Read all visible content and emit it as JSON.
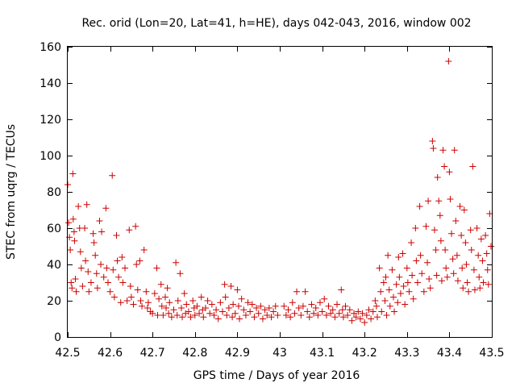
{
  "chart_data": {
    "type": "scatter",
    "title": "Rec. orid (Lon=20, Lat=41, h=HE), days 042-043, 2016, window 002",
    "xlabel": "GPS time / Days of year 2016",
    "ylabel": "STEC from uqrg / TECUs",
    "xlim": [
      42.5,
      43.5
    ],
    "ylim": [
      0,
      160
    ],
    "xticks": [
      "42.5",
      "42.6",
      "42.7",
      "42.8",
      "42.9",
      "43",
      "43.1",
      "43.2",
      "43.3",
      "43.4",
      "43.5"
    ],
    "yticks": [
      "0",
      "20",
      "40",
      "60",
      "80",
      "100",
      "120",
      "140",
      "160"
    ],
    "marker": "+",
    "series_color": "#cc0000",
    "series": [
      {
        "name": "STEC",
        "points": [
          [
            42.5,
            84
          ],
          [
            42.502,
            63
          ],
          [
            42.504,
            55
          ],
          [
            42.506,
            48
          ],
          [
            42.508,
            30
          ],
          [
            42.51,
            27
          ],
          [
            42.512,
            90
          ],
          [
            42.513,
            65
          ],
          [
            42.515,
            58
          ],
          [
            42.516,
            53
          ],
          [
            42.518,
            32
          ],
          [
            42.52,
            25
          ],
          [
            42.525,
            72
          ],
          [
            42.528,
            60
          ],
          [
            42.53,
            47
          ],
          [
            42.532,
            38
          ],
          [
            42.535,
            28
          ],
          [
            42.54,
            60
          ],
          [
            42.542,
            42
          ],
          [
            42.545,
            73
          ],
          [
            42.548,
            36
          ],
          [
            42.55,
            25
          ],
          [
            42.555,
            30
          ],
          [
            42.56,
            57
          ],
          [
            42.562,
            52
          ],
          [
            42.565,
            45
          ],
          [
            42.568,
            35
          ],
          [
            42.57,
            27
          ],
          [
            42.575,
            64
          ],
          [
            42.578,
            40
          ],
          [
            42.58,
            58
          ],
          [
            42.585,
            33
          ],
          [
            42.59,
            71
          ],
          [
            42.592,
            38
          ],
          [
            42.595,
            30
          ],
          [
            42.6,
            25
          ],
          [
            42.605,
            89
          ],
          [
            42.607,
            37
          ],
          [
            42.61,
            22
          ],
          [
            42.615,
            56
          ],
          [
            42.617,
            42
          ],
          [
            42.62,
            33
          ],
          [
            42.625,
            19
          ],
          [
            42.628,
            44
          ],
          [
            42.63,
            30
          ],
          [
            42.635,
            38
          ],
          [
            42.64,
            20
          ],
          [
            42.645,
            59
          ],
          [
            42.648,
            28
          ],
          [
            42.65,
            22
          ],
          [
            42.655,
            18
          ],
          [
            42.66,
            61
          ],
          [
            42.662,
            40
          ],
          [
            42.665,
            26
          ],
          [
            42.67,
            42
          ],
          [
            42.672,
            20
          ],
          [
            42.675,
            17
          ],
          [
            42.68,
            48
          ],
          [
            42.685,
            25
          ],
          [
            42.688,
            16
          ],
          [
            42.69,
            19
          ],
          [
            42.695,
            14
          ],
          [
            42.7,
            13
          ],
          [
            42.705,
            24
          ],
          [
            42.71,
            38
          ],
          [
            42.712,
            12
          ],
          [
            42.715,
            21
          ],
          [
            42.72,
            29
          ],
          [
            42.722,
            17
          ],
          [
            42.725,
            12
          ],
          [
            42.73,
            22
          ],
          [
            42.732,
            16
          ],
          [
            42.735,
            27
          ],
          [
            42.738,
            13
          ],
          [
            42.74,
            19
          ],
          [
            42.745,
            11
          ],
          [
            42.75,
            15
          ],
          [
            42.755,
            41
          ],
          [
            42.758,
            12
          ],
          [
            42.76,
            20
          ],
          [
            42.765,
            35
          ],
          [
            42.768,
            16
          ],
          [
            42.77,
            11
          ],
          [
            42.775,
            24
          ],
          [
            42.778,
            13
          ],
          [
            42.78,
            18
          ],
          [
            42.785,
            14
          ],
          [
            42.79,
            11
          ],
          [
            42.795,
            20
          ],
          [
            42.798,
            16
          ],
          [
            42.8,
            12
          ],
          [
            42.805,
            17
          ],
          [
            42.81,
            13
          ],
          [
            42.815,
            22
          ],
          [
            42.818,
            15
          ],
          [
            42.82,
            11
          ],
          [
            42.825,
            16
          ],
          [
            42.83,
            20
          ],
          [
            42.835,
            13
          ],
          [
            42.84,
            18
          ],
          [
            42.845,
            12
          ],
          [
            42.85,
            15
          ],
          [
            42.855,
            10
          ],
          [
            42.86,
            19
          ],
          [
            42.865,
            14
          ],
          [
            42.87,
            29
          ],
          [
            42.872,
            22
          ],
          [
            42.875,
            12
          ],
          [
            42.88,
            16
          ],
          [
            42.885,
            28
          ],
          [
            42.888,
            11
          ],
          [
            42.89,
            18
          ],
          [
            42.895,
            13
          ],
          [
            42.9,
            26
          ],
          [
            42.903,
            17
          ],
          [
            42.905,
            10
          ],
          [
            42.91,
            21
          ],
          [
            42.915,
            15
          ],
          [
            42.92,
            12
          ],
          [
            42.925,
            19
          ],
          [
            42.93,
            14
          ],
          [
            42.935,
            18
          ],
          [
            42.94,
            11
          ],
          [
            42.945,
            16
          ],
          [
            42.95,
            13
          ],
          [
            42.955,
            17
          ],
          [
            42.96,
            10
          ],
          [
            42.965,
            15
          ],
          [
            42.97,
            12
          ],
          [
            42.975,
            16
          ],
          [
            42.98,
            11
          ],
          [
            42.985,
            14
          ],
          [
            42.99,
            17
          ],
          [
            42.995,
            12
          ],
          [
            43.01,
            17
          ],
          [
            43.015,
            12
          ],
          [
            43.02,
            15
          ],
          [
            43.025,
            11
          ],
          [
            43.03,
            19
          ],
          [
            43.035,
            13
          ],
          [
            43.04,
            25
          ],
          [
            43.045,
            16
          ],
          [
            43.05,
            12
          ],
          [
            43.055,
            17
          ],
          [
            43.06,
            25
          ],
          [
            43.065,
            14
          ],
          [
            43.07,
            11
          ],
          [
            43.075,
            18
          ],
          [
            43.08,
            13
          ],
          [
            43.085,
            16
          ],
          [
            43.09,
            12
          ],
          [
            43.095,
            19
          ],
          [
            43.1,
            14
          ],
          [
            43.105,
            21
          ],
          [
            43.11,
            12
          ],
          [
            43.115,
            17
          ],
          [
            43.12,
            13
          ],
          [
            43.125,
            15
          ],
          [
            43.13,
            11
          ],
          [
            43.135,
            18
          ],
          [
            43.14,
            13
          ],
          [
            43.145,
            26
          ],
          [
            43.148,
            15
          ],
          [
            43.15,
            11
          ],
          [
            43.155,
            17
          ],
          [
            43.16,
            12
          ],
          [
            43.165,
            15
          ],
          [
            43.17,
            9
          ],
          [
            43.175,
            13
          ],
          [
            43.18,
            11
          ],
          [
            43.185,
            14
          ],
          [
            43.19,
            10
          ],
          [
            43.195,
            13
          ],
          [
            43.2,
            8
          ],
          [
            43.205,
            12
          ],
          [
            43.21,
            15
          ],
          [
            43.215,
            10
          ],
          [
            43.22,
            14
          ],
          [
            43.225,
            20
          ],
          [
            43.228,
            17
          ],
          [
            43.23,
            11
          ],
          [
            43.235,
            38
          ],
          [
            43.238,
            25
          ],
          [
            43.24,
            14
          ],
          [
            43.245,
            30
          ],
          [
            43.248,
            20
          ],
          [
            43.25,
            33
          ],
          [
            43.252,
            12
          ],
          [
            43.255,
            45
          ],
          [
            43.258,
            26
          ],
          [
            43.26,
            17
          ],
          [
            43.265,
            37
          ],
          [
            43.268,
            22
          ],
          [
            43.27,
            14
          ],
          [
            43.275,
            29
          ],
          [
            43.278,
            19
          ],
          [
            43.28,
            44
          ],
          [
            43.282,
            33
          ],
          [
            43.285,
            24
          ],
          [
            43.29,
            46
          ],
          [
            43.292,
            28
          ],
          [
            43.295,
            18
          ],
          [
            43.3,
            38
          ],
          [
            43.302,
            30
          ],
          [
            43.305,
            25
          ],
          [
            43.31,
            52
          ],
          [
            43.312,
            34
          ],
          [
            43.315,
            21
          ],
          [
            43.32,
            60
          ],
          [
            43.322,
            42
          ],
          [
            43.325,
            30
          ],
          [
            43.33,
            72
          ],
          [
            43.332,
            45
          ],
          [
            43.335,
            35
          ],
          [
            43.34,
            25
          ],
          [
            43.345,
            61
          ],
          [
            43.348,
            41
          ],
          [
            43.35,
            75
          ],
          [
            43.352,
            32
          ],
          [
            43.355,
            27
          ],
          [
            43.36,
            108
          ],
          [
            43.362,
            104
          ],
          [
            43.365,
            59
          ],
          [
            43.368,
            48
          ],
          [
            43.37,
            34
          ],
          [
            43.372,
            88
          ],
          [
            43.375,
            75
          ],
          [
            43.378,
            67
          ],
          [
            43.38,
            53
          ],
          [
            43.382,
            31
          ],
          [
            43.385,
            103
          ],
          [
            43.388,
            94
          ],
          [
            43.39,
            48
          ],
          [
            43.392,
            38
          ],
          [
            43.395,
            33
          ],
          [
            43.398,
            152
          ],
          [
            43.4,
            91
          ],
          [
            43.402,
            76
          ],
          [
            43.405,
            57
          ],
          [
            43.408,
            43
          ],
          [
            43.41,
            35
          ],
          [
            43.412,
            103
          ],
          [
            43.415,
            64
          ],
          [
            43.418,
            45
          ],
          [
            43.42,
            31
          ],
          [
            43.425,
            72
          ],
          [
            43.428,
            56
          ],
          [
            43.43,
            38
          ],
          [
            43.432,
            27
          ],
          [
            43.435,
            70
          ],
          [
            43.438,
            52
          ],
          [
            43.44,
            40
          ],
          [
            43.442,
            30
          ],
          [
            43.445,
            25
          ],
          [
            43.45,
            59
          ],
          [
            43.452,
            48
          ],
          [
            43.455,
            94
          ],
          [
            43.458,
            37
          ],
          [
            43.46,
            26
          ],
          [
            43.465,
            60
          ],
          [
            43.468,
            45
          ],
          [
            43.47,
            33
          ],
          [
            43.472,
            27
          ],
          [
            43.475,
            54
          ],
          [
            43.478,
            42
          ],
          [
            43.48,
            30
          ],
          [
            43.485,
            56
          ],
          [
            43.488,
            46
          ],
          [
            43.49,
            37
          ],
          [
            43.492,
            29
          ],
          [
            43.495,
            68
          ],
          [
            43.498,
            50
          ]
        ]
      }
    ]
  }
}
